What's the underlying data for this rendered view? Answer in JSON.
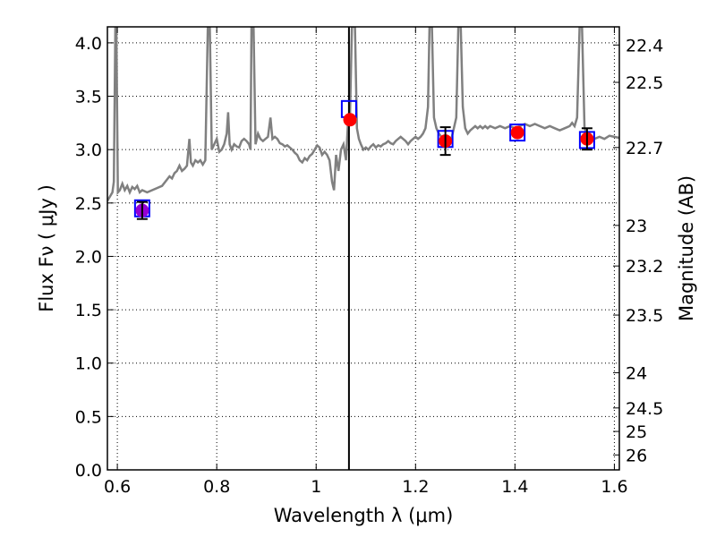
{
  "chart_data": {
    "type": "line",
    "xlabel": "Wavelength  λ (μm)",
    "ylabel": "Flux  Fν  ( μJy )",
    "y2label": "Magnitude (AB)",
    "xlim": [
      0.58,
      1.61
    ],
    "ylim": [
      0.0,
      4.15
    ],
    "grid": true,
    "x_ticks": [
      {
        "value": 0.6,
        "label": "0.6"
      },
      {
        "value": 0.8,
        "label": "0.8"
      },
      {
        "value": 1.0,
        "label": "1"
      },
      {
        "value": 1.2,
        "label": "1.2"
      },
      {
        "value": 1.4,
        "label": "1.4"
      },
      {
        "value": 1.6,
        "label": "1.6"
      }
    ],
    "y_ticks": [
      {
        "value": 0.0,
        "label": "0.0"
      },
      {
        "value": 0.5,
        "label": "0.5"
      },
      {
        "value": 1.0,
        "label": "1.0"
      },
      {
        "value": 1.5,
        "label": "1.5"
      },
      {
        "value": 2.0,
        "label": "2.0"
      },
      {
        "value": 2.5,
        "label": "2.5"
      },
      {
        "value": 3.0,
        "label": "3.0"
      },
      {
        "value": 3.5,
        "label": "3.5"
      },
      {
        "value": 4.0,
        "label": "4.0"
      }
    ],
    "y2_ticks": [
      {
        "flux": 3.98,
        "label": "22.4"
      },
      {
        "flux": 3.63,
        "label": "22.5"
      },
      {
        "flux": 3.02,
        "label": "22.7"
      },
      {
        "flux": 2.29,
        "label": "23"
      },
      {
        "flux": 1.91,
        "label": "23.2"
      },
      {
        "flux": 1.45,
        "label": "23.5"
      },
      {
        "flux": 0.91,
        "label": "24"
      },
      {
        "flux": 0.58,
        "label": "24.5"
      },
      {
        "flux": 0.36,
        "label": "25"
      },
      {
        "flux": 0.14,
        "label": "26"
      }
    ],
    "vertical_line_x": 1.066,
    "model_spectrum": {
      "color": "#808080",
      "points": [
        [
          0.58,
          2.52
        ],
        [
          0.59,
          2.6
        ],
        [
          0.593,
          2.7
        ],
        [
          0.596,
          4.15
        ],
        [
          0.598,
          4.15
        ],
        [
          0.601,
          2.6
        ],
        [
          0.605,
          2.62
        ],
        [
          0.61,
          2.68
        ],
        [
          0.615,
          2.62
        ],
        [
          0.62,
          2.66
        ],
        [
          0.625,
          2.6
        ],
        [
          0.63,
          2.65
        ],
        [
          0.635,
          2.63
        ],
        [
          0.64,
          2.66
        ],
        [
          0.645,
          2.6
        ],
        [
          0.65,
          2.62
        ],
        [
          0.66,
          2.6
        ],
        [
          0.67,
          2.62
        ],
        [
          0.68,
          2.64
        ],
        [
          0.69,
          2.66
        ],
        [
          0.7,
          2.72
        ],
        [
          0.705,
          2.75
        ],
        [
          0.71,
          2.73
        ],
        [
          0.715,
          2.78
        ],
        [
          0.72,
          2.8
        ],
        [
          0.725,
          2.85
        ],
        [
          0.73,
          2.8
        ],
        [
          0.735,
          2.82
        ],
        [
          0.74,
          2.85
        ],
        [
          0.745,
          3.1
        ],
        [
          0.748,
          2.88
        ],
        [
          0.752,
          2.85
        ],
        [
          0.757,
          2.9
        ],
        [
          0.762,
          2.88
        ],
        [
          0.767,
          2.9
        ],
        [
          0.772,
          2.86
        ],
        [
          0.777,
          2.9
        ],
        [
          0.782,
          4.15
        ],
        [
          0.786,
          4.15
        ],
        [
          0.79,
          3.0
        ],
        [
          0.795,
          3.05
        ],
        [
          0.8,
          3.1
        ],
        [
          0.805,
          2.98
        ],
        [
          0.81,
          3.0
        ],
        [
          0.815,
          3.05
        ],
        [
          0.82,
          3.15
        ],
        [
          0.823,
          3.35
        ],
        [
          0.826,
          3.05
        ],
        [
          0.83,
          3.0
        ],
        [
          0.835,
          3.05
        ],
        [
          0.84,
          3.03
        ],
        [
          0.845,
          3.02
        ],
        [
          0.85,
          3.08
        ],
        [
          0.855,
          3.1
        ],
        [
          0.86,
          3.08
        ],
        [
          0.865,
          3.05
        ],
        [
          0.868,
          3.0
        ],
        [
          0.87,
          4.15
        ],
        [
          0.874,
          4.15
        ],
        [
          0.878,
          3.05
        ],
        [
          0.883,
          3.15
        ],
        [
          0.888,
          3.1
        ],
        [
          0.893,
          3.08
        ],
        [
          0.898,
          3.1
        ],
        [
          0.903,
          3.12
        ],
        [
          0.908,
          3.3
        ],
        [
          0.912,
          3.1
        ],
        [
          0.917,
          3.12
        ],
        [
          0.922,
          3.1
        ],
        [
          0.927,
          3.06
        ],
        [
          0.932,
          3.05
        ],
        [
          0.937,
          3.03
        ],
        [
          0.942,
          3.04
        ],
        [
          0.947,
          3.02
        ],
        [
          0.952,
          3.0
        ],
        [
          0.957,
          2.97
        ],
        [
          0.962,
          2.95
        ],
        [
          0.967,
          2.9
        ],
        [
          0.972,
          2.88
        ],
        [
          0.977,
          2.92
        ],
        [
          0.982,
          2.9
        ],
        [
          0.987,
          2.94
        ],
        [
          0.992,
          2.96
        ],
        [
          0.997,
          3.0
        ],
        [
          1.002,
          3.04
        ],
        [
          1.007,
          3.02
        ],
        [
          1.012,
          2.95
        ],
        [
          1.017,
          2.98
        ],
        [
          1.022,
          2.95
        ],
        [
          1.027,
          2.9
        ],
        [
          1.032,
          2.7
        ],
        [
          1.036,
          2.62
        ],
        [
          1.04,
          2.95
        ],
        [
          1.045,
          2.8
        ],
        [
          1.05,
          3.0
        ],
        [
          1.055,
          3.05
        ],
        [
          1.06,
          2.9
        ],
        [
          1.064,
          3.25
        ],
        [
          1.068,
          3.3
        ],
        [
          1.072,
          4.15
        ],
        [
          1.078,
          4.15
        ],
        [
          1.082,
          3.2
        ],
        [
          1.086,
          3.1
        ],
        [
          1.09,
          3.05
        ],
        [
          1.095,
          3.0
        ],
        [
          1.1,
          3.02
        ],
        [
          1.105,
          3.0
        ],
        [
          1.11,
          3.03
        ],
        [
          1.115,
          3.05
        ],
        [
          1.12,
          3.02
        ],
        [
          1.125,
          3.04
        ],
        [
          1.13,
          3.03
        ],
        [
          1.135,
          3.05
        ],
        [
          1.14,
          3.06
        ],
        [
          1.145,
          3.08
        ],
        [
          1.15,
          3.06
        ],
        [
          1.155,
          3.05
        ],
        [
          1.16,
          3.08
        ],
        [
          1.165,
          3.1
        ],
        [
          1.17,
          3.12
        ],
        [
          1.175,
          3.1
        ],
        [
          1.18,
          3.08
        ],
        [
          1.185,
          3.05
        ],
        [
          1.19,
          3.08
        ],
        [
          1.195,
          3.1
        ],
        [
          1.2,
          3.12
        ],
        [
          1.205,
          3.1
        ],
        [
          1.21,
          3.12
        ],
        [
          1.215,
          3.15
        ],
        [
          1.22,
          3.2
        ],
        [
          1.225,
          3.4
        ],
        [
          1.228,
          4.15
        ],
        [
          1.233,
          4.15
        ],
        [
          1.237,
          3.3
        ],
        [
          1.242,
          3.2
        ],
        [
          1.247,
          3.15
        ],
        [
          1.252,
          3.12
        ],
        [
          1.257,
          3.1
        ],
        [
          1.262,
          3.05
        ],
        [
          1.267,
          3.08
        ],
        [
          1.272,
          3.1
        ],
        [
          1.277,
          3.2
        ],
        [
          1.282,
          3.3
        ],
        [
          1.286,
          4.15
        ],
        [
          1.291,
          4.15
        ],
        [
          1.295,
          3.4
        ],
        [
          1.3,
          3.2
        ],
        [
          1.305,
          3.15
        ],
        [
          1.31,
          3.18
        ],
        [
          1.315,
          3.2
        ],
        [
          1.32,
          3.22
        ],
        [
          1.325,
          3.2
        ],
        [
          1.33,
          3.22
        ],
        [
          1.335,
          3.2
        ],
        [
          1.34,
          3.22
        ],
        [
          1.345,
          3.2
        ],
        [
          1.35,
          3.22
        ],
        [
          1.36,
          3.2
        ],
        [
          1.37,
          3.22
        ],
        [
          1.38,
          3.2
        ],
        [
          1.39,
          3.22
        ],
        [
          1.4,
          3.2
        ],
        [
          1.41,
          3.22
        ],
        [
          1.42,
          3.24
        ],
        [
          1.43,
          3.22
        ],
        [
          1.44,
          3.24
        ],
        [
          1.45,
          3.22
        ],
        [
          1.46,
          3.2
        ],
        [
          1.47,
          3.22
        ],
        [
          1.48,
          3.2
        ],
        [
          1.49,
          3.18
        ],
        [
          1.5,
          3.2
        ],
        [
          1.51,
          3.22
        ],
        [
          1.515,
          3.25
        ],
        [
          1.52,
          3.22
        ],
        [
          1.525,
          3.3
        ],
        [
          1.53,
          4.15
        ],
        [
          1.535,
          4.15
        ],
        [
          1.54,
          3.2
        ],
        [
          1.545,
          3.15
        ],
        [
          1.55,
          3.12
        ],
        [
          1.56,
          3.1
        ],
        [
          1.57,
          3.12
        ],
        [
          1.58,
          3.1
        ],
        [
          1.59,
          3.13
        ],
        [
          1.6,
          3.12
        ],
        [
          1.61,
          3.11
        ]
      ]
    },
    "model_photometry": {
      "color": "#0000ff",
      "points": [
        {
          "x": 0.65,
          "y": 2.45
        },
        {
          "x": 1.066,
          "y": 3.38
        },
        {
          "x": 1.26,
          "y": 3.1
        },
        {
          "x": 1.405,
          "y": 3.16
        },
        {
          "x": 1.545,
          "y": 3.09
        }
      ]
    },
    "observed": {
      "color": "#ff0000",
      "purple_color": "#9400d3",
      "points": [
        {
          "x": 0.65,
          "y": 2.43,
          "yerr": 0.08,
          "color": "purple"
        },
        {
          "x": 1.068,
          "y": 3.28,
          "yerr": 0.0,
          "color": "red"
        },
        {
          "x": 1.26,
          "y": 3.08,
          "yerr": 0.13,
          "color": "red"
        },
        {
          "x": 1.405,
          "y": 3.16,
          "yerr": 0.0,
          "color": "red"
        },
        {
          "x": 1.545,
          "y": 3.1,
          "yerr": 0.1,
          "color": "red"
        }
      ]
    }
  }
}
